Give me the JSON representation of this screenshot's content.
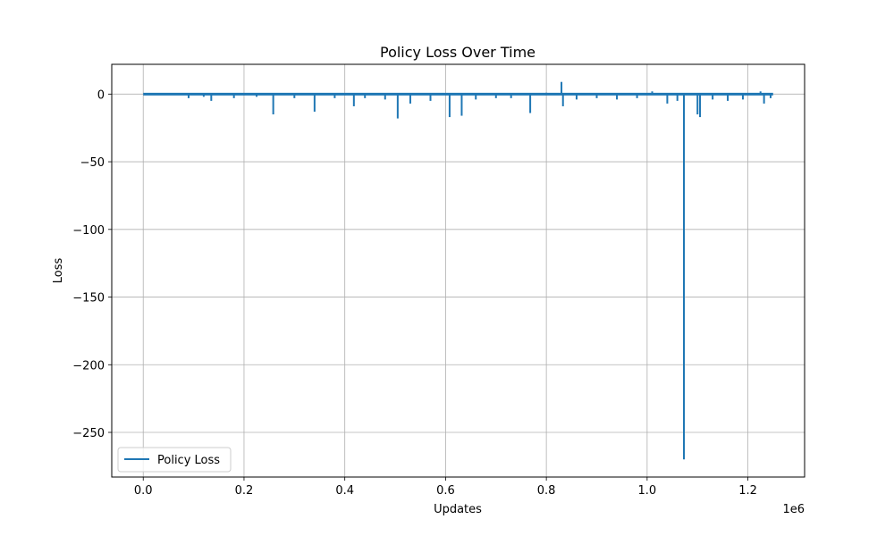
{
  "chart_data": {
    "type": "line",
    "title": "Policy Loss Over Time",
    "xlabel": "Updates",
    "ylabel": "Loss",
    "x_offset_text": "1e6",
    "xlim": [
      -62500,
      1312500
    ],
    "ylim": [
      -283,
      22
    ],
    "xticks": [
      0,
      200000,
      400000,
      600000,
      800000,
      1000000,
      1200000
    ],
    "xtick_labels": [
      "0.0",
      "0.2",
      "0.4",
      "0.6",
      "0.8",
      "1.0",
      "1.2"
    ],
    "yticks": [
      0,
      -50,
      -100,
      -150,
      -200,
      -250
    ],
    "ytick_labels": [
      "0",
      "−50",
      "−100",
      "−150",
      "−200",
      "−250"
    ],
    "grid": true,
    "legend": {
      "position": "lower-left"
    },
    "x_range": [
      0,
      1250000
    ],
    "baseline": 0,
    "series": [
      {
        "name": "Policy Loss",
        "color": "#1f77b4",
        "spikes": [
          {
            "x": 90000,
            "y": -3
          },
          {
            "x": 120000,
            "y": -2
          },
          {
            "x": 135000,
            "y": -5
          },
          {
            "x": 180000,
            "y": -3
          },
          {
            "x": 225000,
            "y": -2
          },
          {
            "x": 258000,
            "y": -15
          },
          {
            "x": 300000,
            "y": -3
          },
          {
            "x": 340000,
            "y": -13
          },
          {
            "x": 380000,
            "y": -3
          },
          {
            "x": 418000,
            "y": -9
          },
          {
            "x": 440000,
            "y": -3
          },
          {
            "x": 480000,
            "y": -4
          },
          {
            "x": 505000,
            "y": -18
          },
          {
            "x": 530000,
            "y": -7
          },
          {
            "x": 570000,
            "y": -5
          },
          {
            "x": 608000,
            "y": -17
          },
          {
            "x": 632000,
            "y": -16
          },
          {
            "x": 660000,
            "y": -4
          },
          {
            "x": 700000,
            "y": -3
          },
          {
            "x": 730000,
            "y": -3
          },
          {
            "x": 768000,
            "y": -14
          },
          {
            "x": 800000,
            "y": 1
          },
          {
            "x": 830000,
            "y": 9
          },
          {
            "x": 833000,
            "y": -9
          },
          {
            "x": 860000,
            "y": -4
          },
          {
            "x": 900000,
            "y": -3
          },
          {
            "x": 940000,
            "y": -4
          },
          {
            "x": 980000,
            "y": -3
          },
          {
            "x": 1010000,
            "y": 2
          },
          {
            "x": 1040000,
            "y": -7
          },
          {
            "x": 1060000,
            "y": -5
          },
          {
            "x": 1073000,
            "y": -270
          },
          {
            "x": 1100000,
            "y": -15
          },
          {
            "x": 1105000,
            "y": -17
          },
          {
            "x": 1130000,
            "y": -4
          },
          {
            "x": 1160000,
            "y": -5
          },
          {
            "x": 1190000,
            "y": -4
          },
          {
            "x": 1225000,
            "y": 2
          },
          {
            "x": 1232000,
            "y": -7
          },
          {
            "x": 1245000,
            "y": -3
          }
        ]
      }
    ]
  }
}
